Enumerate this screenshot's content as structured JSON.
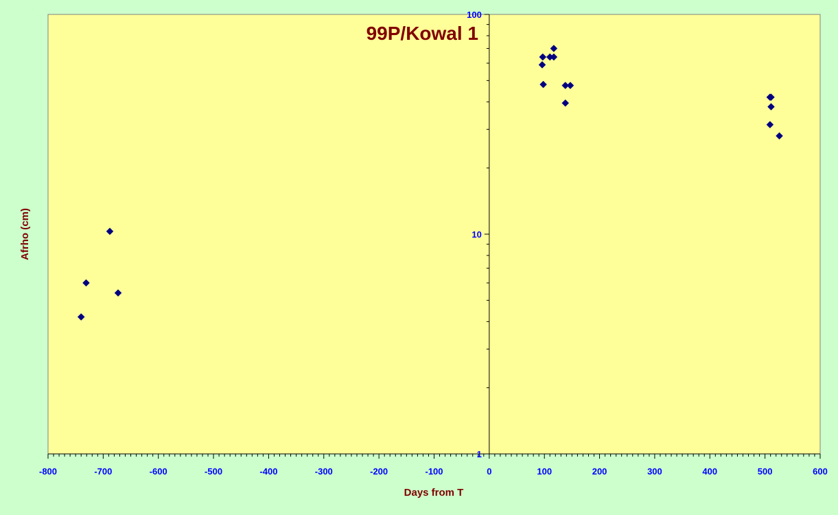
{
  "chart_data": {
    "type": "scatter",
    "title": "99P/Kowal 1",
    "xlabel": "Days from T",
    "ylabel": "Afrho (cm)",
    "xlim": [
      -800,
      600
    ],
    "ylim": [
      1,
      100
    ],
    "yscale": "log",
    "x_ticks": [
      -800,
      -700,
      -600,
      -500,
      -400,
      -300,
      -200,
      -100,
      0,
      100,
      200,
      300,
      400,
      500,
      600
    ],
    "x_tick_labels": [
      "-800",
      "-700",
      "-600",
      "-500",
      "-400",
      "-300",
      "-200",
      "-100",
      "0",
      "100",
      "200",
      "300",
      "400",
      "500",
      "600"
    ],
    "y_ticks": [
      1,
      10,
      100
    ],
    "y_tick_labels": [
      "1",
      "10",
      "100"
    ],
    "grid": false,
    "legend": "none",
    "colors": {
      "page_background": "#ccffcc",
      "plot_background": "#ffff99",
      "marker": "#000080",
      "tick_labels": "#0000ff",
      "titles": "#800000",
      "axis_line": "#000000"
    },
    "marker_shape": "diamond",
    "series": [
      {
        "points": [
          {
            "x": -740,
            "y": 4.2
          },
          {
            "x": -731,
            "y": 6.0
          },
          {
            "x": -688,
            "y": 10.3
          },
          {
            "x": -673,
            "y": 5.4
          },
          {
            "x": 97,
            "y": 64
          },
          {
            "x": 96,
            "y": 59
          },
          {
            "x": 98,
            "y": 48
          },
          {
            "x": 110,
            "y": 64
          },
          {
            "x": 117,
            "y": 64
          },
          {
            "x": 117,
            "y": 70
          },
          {
            "x": 138,
            "y": 47.5
          },
          {
            "x": 147,
            "y": 47.5
          },
          {
            "x": 138,
            "y": 39.5
          },
          {
            "x": 509,
            "y": 42
          },
          {
            "x": 511,
            "y": 42
          },
          {
            "x": 511,
            "y": 38
          },
          {
            "x": 509,
            "y": 31.5
          },
          {
            "x": 526,
            "y": 28
          }
        ]
      }
    ]
  }
}
